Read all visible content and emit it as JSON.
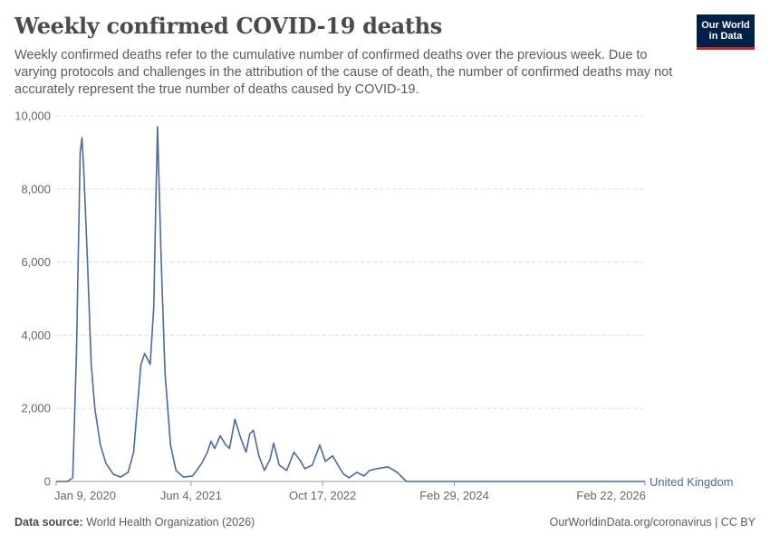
{
  "header": {
    "title": "Weekly confirmed COVID-19 deaths",
    "subtitle": "Weekly confirmed deaths refer to the cumulative number of confirmed deaths over the previous week. Due to varying protocols and challenges in the attribution of the cause of death, the number of confirmed deaths may not accurately represent the true number of deaths caused by COVID-19.",
    "logo_line1": "Our World",
    "logo_line2": "in Data"
  },
  "footer": {
    "source_label": "Data source:",
    "source_text": "World Health Organization (2026)",
    "credit": "OurWorldinData.org/coronavirus | CC BY"
  },
  "colors": {
    "series": "#4c6a9c",
    "grid": "#dddddd",
    "axis": "#666666"
  },
  "chart_data": {
    "type": "line",
    "title": "Weekly confirmed COVID-19 deaths",
    "xlabel": "",
    "ylabel": "",
    "ylim": [
      0,
      10000
    ],
    "xlim": [
      "2020-01-09",
      "2026-02-22"
    ],
    "yticks": [
      0,
      2000,
      4000,
      6000,
      8000,
      10000
    ],
    "ytick_labels": [
      "0",
      "2,000",
      "4,000",
      "6,000",
      "8,000",
      "10,000"
    ],
    "xticks": [
      "2020-01-09",
      "2021-06-04",
      "2022-10-17",
      "2024-02-29",
      "2026-02-22"
    ],
    "xtick_labels": [
      "Jan 9, 2020",
      "Jun 4, 2021",
      "Oct 17, 2022",
      "Feb 29, 2024",
      "Feb 22, 2026"
    ],
    "grid": true,
    "series": [
      {
        "name": "United Kingdom",
        "x": [
          "2020-01-09",
          "2020-02-20",
          "2020-03-12",
          "2020-03-26",
          "2020-04-09",
          "2020-04-16",
          "2020-04-23",
          "2020-05-07",
          "2020-05-21",
          "2020-06-04",
          "2020-06-25",
          "2020-07-16",
          "2020-08-13",
          "2020-09-10",
          "2020-10-08",
          "2020-10-29",
          "2020-11-12",
          "2020-11-26",
          "2020-12-10",
          "2020-12-31",
          "2021-01-14",
          "2021-01-21",
          "2021-01-28",
          "2021-02-11",
          "2021-02-25",
          "2021-03-18",
          "2021-04-08",
          "2021-05-06",
          "2021-06-10",
          "2021-07-15",
          "2021-08-05",
          "2021-08-19",
          "2021-09-02",
          "2021-09-23",
          "2021-10-14",
          "2021-10-28",
          "2021-11-18",
          "2021-12-09",
          "2021-12-30",
          "2022-01-13",
          "2022-01-27",
          "2022-02-17",
          "2022-03-10",
          "2022-03-31",
          "2022-04-14",
          "2022-05-05",
          "2022-06-02",
          "2022-06-30",
          "2022-07-21",
          "2022-08-11",
          "2022-09-08",
          "2022-10-06",
          "2022-10-27",
          "2022-11-24",
          "2022-12-22",
          "2023-01-05",
          "2023-01-26",
          "2023-02-23",
          "2023-03-23",
          "2023-04-13",
          "2023-05-11",
          "2023-06-22",
          "2023-07-27",
          "2023-08-31",
          "2023-09-28",
          "2023-10-19",
          "2023-11-02",
          "2023-11-09",
          "2023-11-16",
          "2023-11-23",
          "2023-12-07",
          "2024-02-29",
          "2025-02-20",
          "2026-02-22"
        ],
        "values": [
          0,
          0,
          100,
          3500,
          9000,
          9400,
          8500,
          6000,
          3200,
          2000,
          1000,
          500,
          200,
          120,
          250,
          800,
          2000,
          3200,
          3500,
          3200,
          4800,
          7500,
          9700,
          6000,
          3000,
          1000,
          300,
          120,
          150,
          500,
          800,
          1100,
          900,
          1250,
          1000,
          900,
          1700,
          1200,
          800,
          1300,
          1400,
          700,
          300,
          600,
          1050,
          450,
          300,
          800,
          600,
          350,
          450,
          1000,
          550,
          700,
          350,
          200,
          100,
          250,
          150,
          300,
          350,
          400,
          250,
          0,
          0,
          0,
          0,
          0,
          0,
          0,
          0,
          0,
          0,
          0
        ]
      }
    ]
  }
}
